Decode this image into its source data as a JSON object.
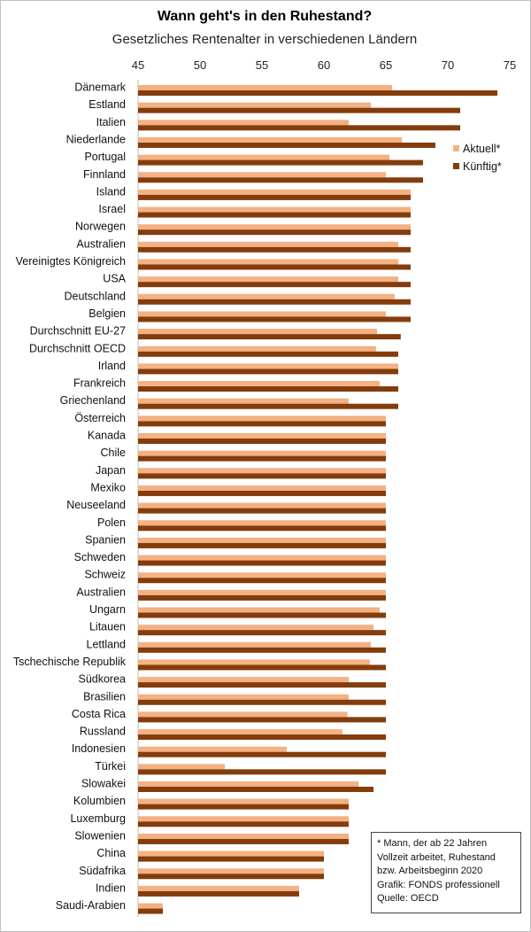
{
  "chart_data": {
    "type": "bar",
    "orientation": "horizontal",
    "title": "Wann geht's in den Ruhestand?",
    "subtitle": "Gesetzliches Rentenalter in verschiedenen Ländern",
    "xlim": [
      45,
      75
    ],
    "xticks": [
      45,
      50,
      55,
      60,
      65,
      70,
      75
    ],
    "grid": false,
    "legend_position": "right",
    "categories": [
      "Dänemark",
      "Estland",
      "Italien",
      "Niederlande",
      "Portugal",
      "Finnland",
      "Island",
      "Israel",
      "Norwegen",
      "Australien",
      "Vereinigtes Königreich",
      "USA",
      "Deutschland",
      "Belgien",
      "Durchschnitt EU-27",
      "Durchschnitt OECD",
      "Irland",
      "Frankreich",
      "Griechenland",
      "Österreich",
      "Kanada",
      "Chile",
      "Japan",
      "Mexiko",
      "Neuseeland",
      "Polen",
      "Spanien",
      "Schweden",
      "Schweiz",
      "Australien",
      "Ungarn",
      "Litauen",
      "Lettland",
      "Tschechische Republik",
      "Südkorea",
      "Brasilien",
      "Costa Rica",
      "Russland",
      "Indonesien",
      "Türkei",
      "Slowakei",
      "Kolumbien",
      "Luxemburg",
      "Slowenien",
      "China",
      "Südafrika",
      "Indien",
      "Saudi-Arabien"
    ],
    "series": [
      {
        "name": "Aktuell*",
        "color": "#f4b183",
        "values": [
          65.5,
          63.8,
          62,
          66.3,
          65.3,
          65,
          67,
          67,
          67,
          66,
          66,
          66,
          65.7,
          65,
          64.3,
          64.2,
          66,
          64.5,
          62,
          65,
          65,
          65,
          65,
          65,
          65,
          65,
          65,
          65,
          65,
          65,
          64.5,
          64,
          63.8,
          63.7,
          62,
          62,
          61.9,
          61.5,
          57,
          52,
          62.8,
          62,
          62,
          62,
          60,
          60,
          58,
          47
        ]
      },
      {
        "name": "Künftig*",
        "color": "#843c0c",
        "values": [
          74,
          71,
          71,
          69,
          68,
          68,
          67,
          67,
          67,
          67,
          67,
          67,
          67,
          67,
          66.2,
          66,
          66,
          66,
          66,
          65,
          65,
          65,
          65,
          65,
          65,
          65,
          65,
          65,
          65,
          65,
          65,
          65,
          65,
          65,
          65,
          65,
          65,
          65,
          65,
          65,
          64,
          62,
          62,
          62,
          60,
          60,
          58,
          47
        ]
      }
    ]
  },
  "note": {
    "lines": [
      "* Mann, der ab 22 Jahren",
      "Vollzeit arbeitet, Ruhestand",
      "bzw. Arbeitsbeginn 2020",
      "Grafik: FONDS professionell",
      "Quelle: OECD"
    ]
  }
}
